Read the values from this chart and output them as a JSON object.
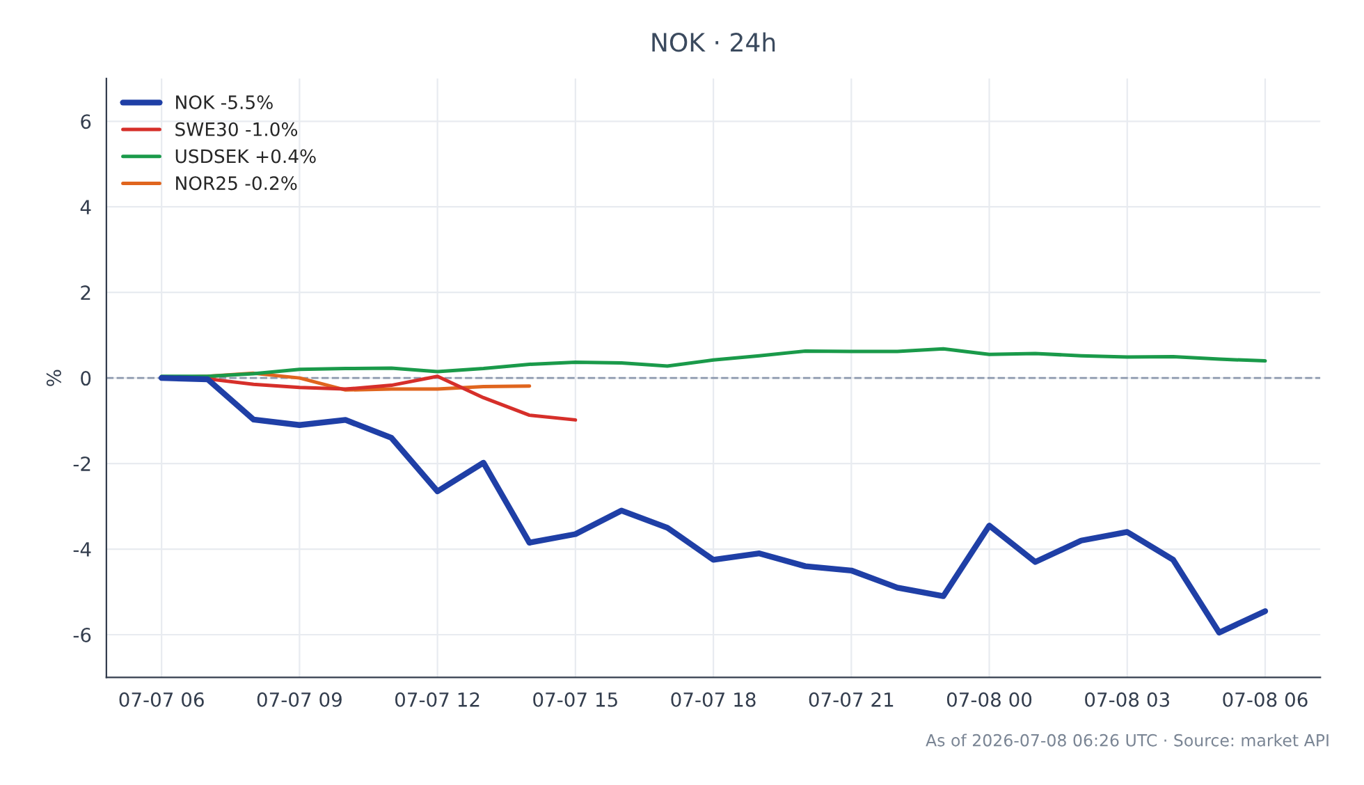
{
  "chart_data": {
    "type": "line",
    "title": "NOK · 24h",
    "ylabel": "%",
    "x": [
      "2026-07-07T06:00",
      "2026-07-07T07:00",
      "2026-07-07T08:00",
      "2026-07-07T09:00",
      "2026-07-07T10:00",
      "2026-07-07T11:00",
      "2026-07-07T12:00",
      "2026-07-07T13:00",
      "2026-07-07T14:00",
      "2026-07-07T15:00",
      "2026-07-07T16:00",
      "2026-07-07T17:00",
      "2026-07-07T18:00",
      "2026-07-07T19:00",
      "2026-07-07T20:00",
      "2026-07-07T21:00",
      "2026-07-07T22:00",
      "2026-07-07T23:00",
      "2026-07-08T00:00",
      "2026-07-08T01:00",
      "2026-07-08T02:00",
      "2026-07-08T03:00",
      "2026-07-08T04:00",
      "2026-07-08T05:00",
      "2026-07-08T06:00"
    ],
    "series": [
      {
        "name": "NOK -5.5%",
        "color": "#1f3fa6",
        "values": [
          0,
          -0.03,
          -0.97,
          -1.1,
          -0.98,
          -1.4,
          -2.65,
          -1.98,
          -3.85,
          -3.65,
          -3.1,
          -3.5,
          -4.25,
          -4.1,
          -4.4,
          -4.5,
          -4.9,
          -5.1,
          -3.45,
          -4.3,
          -3.8,
          -3.6,
          -4.25,
          -5.95,
          -5.45
        ]
      },
      {
        "name": "SWE30 -1.0%",
        "color": "#d62f2a",
        "values": [
          0,
          -0.02,
          -0.15,
          -0.22,
          -0.26,
          -0.17,
          0.04,
          -0.46,
          -0.87,
          -0.98,
          null,
          null,
          null,
          null,
          null,
          null,
          null,
          null,
          null,
          null,
          null,
          null,
          null,
          null,
          null
        ]
      },
      {
        "name": "USDSEK +0.4%",
        "color": "#1a9a4a",
        "values": [
          0.04,
          0.04,
          0.1,
          0.2,
          0.22,
          0.23,
          0.15,
          0.22,
          0.32,
          0.37,
          0.35,
          0.28,
          0.42,
          0.52,
          0.63,
          0.62,
          0.62,
          0.68,
          0.55,
          0.57,
          0.52,
          0.49,
          0.5,
          0.44,
          0.4
        ]
      },
      {
        "name": "NOR25 -0.2%",
        "color": "#e0651e",
        "values": [
          0,
          0.04,
          0.11,
          0,
          -0.28,
          -0.26,
          -0.26,
          -0.2,
          -0.19,
          null,
          null,
          null,
          null,
          null,
          null,
          null,
          null,
          null,
          null,
          null,
          null,
          null,
          null,
          null,
          null
        ]
      }
    ],
    "xlim": [
      "2026-07-07T04:48",
      "2026-07-08T07:12"
    ],
    "xticks": [
      {
        "value": "2026-07-07T06:00",
        "label": "07-07 06"
      },
      {
        "value": "2026-07-07T09:00",
        "label": "07-07 09"
      },
      {
        "value": "2026-07-07T12:00",
        "label": "07-07 12"
      },
      {
        "value": "2026-07-07T15:00",
        "label": "07-07 15"
      },
      {
        "value": "2026-07-07T18:00",
        "label": "07-07 18"
      },
      {
        "value": "2026-07-07T21:00",
        "label": "07-07 21"
      },
      {
        "value": "2026-07-08T00:00",
        "label": "07-08 00"
      },
      {
        "value": "2026-07-08T03:00",
        "label": "07-08 03"
      },
      {
        "value": "2026-07-08T06:00",
        "label": "07-08 06"
      }
    ],
    "ylim": [
      -7,
      7
    ],
    "yticks": [
      -6,
      -4,
      -2,
      0,
      2,
      4,
      6
    ],
    "ref_lines": [
      {
        "axis": "y",
        "value": 0,
        "color": "#8d99ae",
        "line_style": "dashed"
      }
    ],
    "grid": true,
    "legend": "top left",
    "marker": "none",
    "line_style": "solid",
    "annotations": [
      "As of 2026-07-08 06:26 UTC · Source: market API"
    ]
  }
}
